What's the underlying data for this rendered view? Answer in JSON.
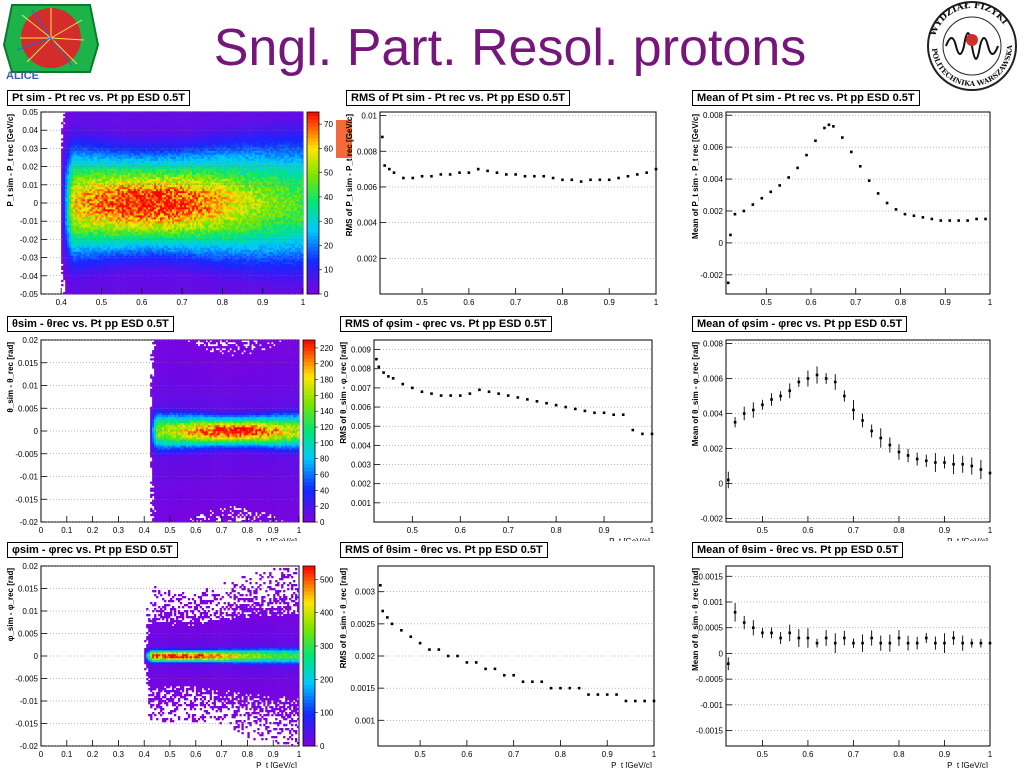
{
  "slide": {
    "title": "Sngl. Part. Resol. protons",
    "logo_left_text": "ALICE",
    "logo_right_text_top": "WYDZIAŁ FIZYKI",
    "logo_right_text_bottom": "POLITECHNIKA WARSZAWSKA",
    "colors": {
      "title": "#74167a",
      "marker": "#f26a3a"
    }
  },
  "chart_data": [
    {
      "id": "p1",
      "type": "heatmap",
      "title": "P_{t sim} - P_{t rec} vs. P_{t}   pp ESD 0.5T",
      "xlabel": "P_t [GeV/c]",
      "ylabel": "P_t sim - P_t rec [GeV/c]",
      "xlim": [
        0.35,
        1.0
      ],
      "ylim": [
        -0.05,
        0.05
      ],
      "xticks": [
        0.4,
        0.5,
        0.6,
        0.7,
        0.8,
        0.9,
        1
      ],
      "yticks": [
        -0.05,
        -0.04,
        -0.03,
        -0.02,
        -0.01,
        0,
        0.01,
        0.02,
        0.03,
        0.04,
        0.05
      ],
      "zticks": [
        0,
        10,
        20,
        30,
        40,
        50,
        60,
        70
      ],
      "zmax": 75,
      "xstart": 0.4,
      "ycenter": 0.0,
      "ywidth": 0.016,
      "peak_x": 0.62
    },
    {
      "id": "p2",
      "type": "scatter",
      "title": "RMS of P_{t sim} - P_{t rec} vs. P_{t}   pp ESD 0.5T",
      "xlabel": "P_t [GeV/c]",
      "ylabel": "RMS of P_t sim - P_t rec [GeV/c]",
      "xlim": [
        0.41,
        1.0
      ],
      "ylim": [
        0,
        0.0102
      ],
      "xticks": [
        0.5,
        0.6,
        0.7,
        0.8,
        0.9,
        1
      ],
      "yticks": [
        0.002,
        0.004,
        0.006,
        0.008,
        0.01
      ],
      "x": [
        0.415,
        0.42,
        0.43,
        0.44,
        0.46,
        0.48,
        0.5,
        0.52,
        0.54,
        0.56,
        0.58,
        0.6,
        0.62,
        0.64,
        0.66,
        0.68,
        0.7,
        0.72,
        0.74,
        0.76,
        0.78,
        0.8,
        0.82,
        0.84,
        0.86,
        0.88,
        0.9,
        0.92,
        0.94,
        0.96,
        0.98,
        1.0
      ],
      "y": [
        0.0088,
        0.0072,
        0.007,
        0.0068,
        0.0065,
        0.0065,
        0.0066,
        0.0066,
        0.0067,
        0.0067,
        0.0068,
        0.0068,
        0.007,
        0.0069,
        0.0068,
        0.0067,
        0.0067,
        0.0066,
        0.0066,
        0.0066,
        0.0065,
        0.0064,
        0.0064,
        0.0063,
        0.0064,
        0.0064,
        0.0064,
        0.0065,
        0.0066,
        0.0067,
        0.0068,
        0.007
      ]
    },
    {
      "id": "p3",
      "type": "scatter",
      "title": "Mean of P_{t sim} - P_{t rec} vs. P_{t}   pp ESD 0.5T",
      "xlabel": "P_t [GeV/c]",
      "ylabel": "Mean of P_t sim - P_t rec [GeV/c]",
      "xlim": [
        0.41,
        1.0
      ],
      "ylim": [
        -0.0032,
        0.0082
      ],
      "xticks": [
        0.5,
        0.6,
        0.7,
        0.8,
        0.9,
        1
      ],
      "yticks": [
        -0.002,
        0,
        0.002,
        0.004,
        0.006,
        0.008
      ],
      "x": [
        0.415,
        0.42,
        0.43,
        0.45,
        0.47,
        0.49,
        0.51,
        0.53,
        0.55,
        0.57,
        0.59,
        0.61,
        0.63,
        0.64,
        0.65,
        0.67,
        0.69,
        0.71,
        0.73,
        0.75,
        0.77,
        0.79,
        0.81,
        0.83,
        0.85,
        0.87,
        0.89,
        0.91,
        0.93,
        0.95,
        0.97,
        0.99
      ],
      "y": [
        -0.0025,
        0.0005,
        0.0018,
        0.002,
        0.0024,
        0.0028,
        0.0032,
        0.0036,
        0.0041,
        0.0047,
        0.0055,
        0.0064,
        0.0072,
        0.0074,
        0.0073,
        0.0066,
        0.0057,
        0.0048,
        0.0039,
        0.0031,
        0.0025,
        0.0021,
        0.0018,
        0.0017,
        0.0016,
        0.0015,
        0.0014,
        0.0014,
        0.0014,
        0.0014,
        0.0015,
        0.0015
      ]
    },
    {
      "id": "p4",
      "type": "heatmap",
      "title": "θ_{sim} - θ_{rec} vs. P_{t}   pp ESD 0.5T",
      "xlabel": "P_t [GeV/c]",
      "ylabel": "θ_sim - θ_rec [rad]",
      "xlim": [
        0,
        1.0
      ],
      "ylim": [
        -0.02,
        0.02
      ],
      "xticks": [
        0,
        0.1,
        0.2,
        0.3,
        0.4,
        0.5,
        0.6,
        0.7,
        0.8,
        0.9,
        1
      ],
      "yticks": [
        -0.02,
        -0.015,
        -0.01,
        -0.005,
        0,
        0.005,
        0.01,
        0.015,
        0.02
      ],
      "zticks": [
        0,
        20,
        40,
        60,
        80,
        100,
        120,
        140,
        160,
        180,
        200,
        220
      ],
      "zmax": 230,
      "xstart": 0.42,
      "ycenter": 0.0,
      "ywidth": 0.002,
      "peak_x": 0.75
    },
    {
      "id": "p5",
      "type": "scatter",
      "title": "RMS of φ_{sim} - φ_{rec} vs. P_{t}   pp ESD 0.5T",
      "xlabel": "P_t [GeV/c]",
      "ylabel": "RMS of θ_sim - φ_rec [rad]",
      "xlim": [
        0.42,
        1.0
      ],
      "ylim": [
        0,
        0.0095
      ],
      "xticks": [
        0.5,
        0.6,
        0.7,
        0.8,
        0.9,
        1
      ],
      "yticks": [
        0.001,
        0.002,
        0.003,
        0.004,
        0.005,
        0.006,
        0.007,
        0.008,
        0.009
      ],
      "x": [
        0.425,
        0.43,
        0.44,
        0.45,
        0.46,
        0.48,
        0.5,
        0.52,
        0.54,
        0.56,
        0.58,
        0.6,
        0.62,
        0.64,
        0.66,
        0.68,
        0.7,
        0.72,
        0.74,
        0.76,
        0.78,
        0.8,
        0.82,
        0.84,
        0.86,
        0.88,
        0.9,
        0.92,
        0.94,
        0.96,
        0.98,
        1.0
      ],
      "y": [
        0.0085,
        0.0081,
        0.0078,
        0.0076,
        0.0075,
        0.0072,
        0.007,
        0.0068,
        0.0067,
        0.0066,
        0.0066,
        0.0066,
        0.0067,
        0.0069,
        0.0068,
        0.0067,
        0.0066,
        0.0065,
        0.0064,
        0.0063,
        0.0062,
        0.0061,
        0.006,
        0.0059,
        0.0058,
        0.0057,
        0.0057,
        0.0056,
        0.0056,
        0.0048,
        0.0046,
        0.0046
      ]
    },
    {
      "id": "p6",
      "type": "scatter",
      "title": "Mean of φ_{sim} - φ_{rec} vs. P_{t}   pp ESD 0.5T",
      "xlabel": "P_t [GeV/c]",
      "ylabel": "Mean of θ_sim - φ_rec [rad]",
      "xlim": [
        0.42,
        1.0
      ],
      "ylim": [
        -0.0022,
        0.0082
      ],
      "xticks": [
        0.5,
        0.6,
        0.7,
        0.8,
        0.9,
        1
      ],
      "yticks": [
        -0.002,
        0,
        0.002,
        0.004,
        0.006,
        0.008
      ],
      "errors": true,
      "x": [
        0.425,
        0.44,
        0.46,
        0.48,
        0.5,
        0.52,
        0.54,
        0.56,
        0.58,
        0.6,
        0.62,
        0.64,
        0.66,
        0.68,
        0.7,
        0.72,
        0.74,
        0.76,
        0.78,
        0.8,
        0.82,
        0.84,
        0.86,
        0.88,
        0.9,
        0.92,
        0.94,
        0.96,
        0.98,
        1.0
      ],
      "y": [
        0.0002,
        0.0035,
        0.004,
        0.0042,
        0.0045,
        0.0048,
        0.005,
        0.0053,
        0.0058,
        0.006,
        0.0062,
        0.006,
        0.0058,
        0.005,
        0.0042,
        0.0036,
        0.003,
        0.0026,
        0.0022,
        0.0018,
        0.0016,
        0.0014,
        0.0013,
        0.0012,
        0.0012,
        0.0011,
        0.0011,
        0.001,
        0.0008,
        0.0006
      ]
    },
    {
      "id": "p7",
      "type": "heatmap",
      "title": "φ_{sim} - φ_{rec} vs. P_{t}   pp ESD 0.5T",
      "xlabel": "P_t [GeV/c]",
      "ylabel": "φ_sim - φ_rec [rad]",
      "xlim": [
        0,
        1.0
      ],
      "ylim": [
        -0.02,
        0.02
      ],
      "xticks": [
        0,
        0.1,
        0.2,
        0.3,
        0.4,
        0.5,
        0.6,
        0.7,
        0.8,
        0.9,
        1
      ],
      "yticks": [
        -0.02,
        -0.015,
        -0.01,
        -0.005,
        0,
        0.005,
        0.01,
        0.015,
        0.02
      ],
      "zticks": [
        0,
        100,
        200,
        300,
        400,
        500
      ],
      "zmax": 540,
      "xstart": 0.4,
      "ycenter": 0.0,
      "ywidth": 0.0008,
      "peak_x": 0.55
    },
    {
      "id": "p8",
      "type": "scatter",
      "title": "RMS of θ_{sim} - θ_{rec} vs. P_{t}   pp ESD 0.5T",
      "xlabel": "P_t [GeV/c]",
      "ylabel": "RMS of θ_sim - θ_rec [rad]",
      "xlim": [
        0.41,
        1.0
      ],
      "ylim": [
        0.0006,
        0.0034
      ],
      "xticks": [
        0.5,
        0.6,
        0.7,
        0.8,
        0.9,
        1
      ],
      "yticks": [
        0.001,
        0.0015,
        0.002,
        0.0025,
        0.003
      ],
      "x": [
        0.415,
        0.42,
        0.43,
        0.44,
        0.46,
        0.48,
        0.5,
        0.52,
        0.54,
        0.56,
        0.58,
        0.6,
        0.62,
        0.64,
        0.66,
        0.68,
        0.7,
        0.72,
        0.74,
        0.76,
        0.78,
        0.8,
        0.82,
        0.84,
        0.86,
        0.88,
        0.9,
        0.92,
        0.94,
        0.96,
        0.98,
        1.0
      ],
      "y": [
        0.0031,
        0.0027,
        0.0026,
        0.0025,
        0.0024,
        0.0023,
        0.0022,
        0.0021,
        0.0021,
        0.002,
        0.002,
        0.0019,
        0.0019,
        0.0018,
        0.0018,
        0.0017,
        0.0017,
        0.0016,
        0.0016,
        0.0016,
        0.0015,
        0.0015,
        0.0015,
        0.0015,
        0.0014,
        0.0014,
        0.0014,
        0.0014,
        0.0013,
        0.0013,
        0.0013,
        0.0013
      ]
    },
    {
      "id": "p9",
      "type": "scatter",
      "title": "Mean of θ_{sim} - θ_{rec} vs. P_{t}   pp ESD 0.5T",
      "xlabel": "P_t [GeV/c]",
      "ylabel": "Mean of θ_sim - θ_rec [rad]",
      "xlim": [
        0.42,
        1.0
      ],
      "ylim": [
        -0.0018,
        0.0017
      ],
      "xticks": [
        0.5,
        0.6,
        0.7,
        0.8,
        0.9,
        1
      ],
      "yticks": [
        -0.0015,
        -0.001,
        -0.0005,
        0,
        0.0005,
        0.001,
        0.0015
      ],
      "errors": true,
      "x": [
        0.425,
        0.44,
        0.46,
        0.48,
        0.5,
        0.52,
        0.54,
        0.56,
        0.58,
        0.6,
        0.62,
        0.64,
        0.66,
        0.68,
        0.7,
        0.72,
        0.74,
        0.76,
        0.78,
        0.8,
        0.82,
        0.84,
        0.86,
        0.88,
        0.9,
        0.92,
        0.94,
        0.96,
        0.98,
        1.0
      ],
      "y": [
        -0.0002,
        0.0008,
        0.0006,
        0.0005,
        0.0004,
        0.0004,
        0.0003,
        0.0004,
        0.0003,
        0.0003,
        0.0002,
        0.0003,
        0.0002,
        0.0003,
        0.0002,
        0.0002,
        0.0003,
        0.0002,
        0.0002,
        0.0003,
        0.0002,
        0.0002,
        0.0003,
        0.0002,
        0.0002,
        0.0003,
        0.0002,
        0.0002,
        0.0002,
        0.0002
      ]
    }
  ]
}
